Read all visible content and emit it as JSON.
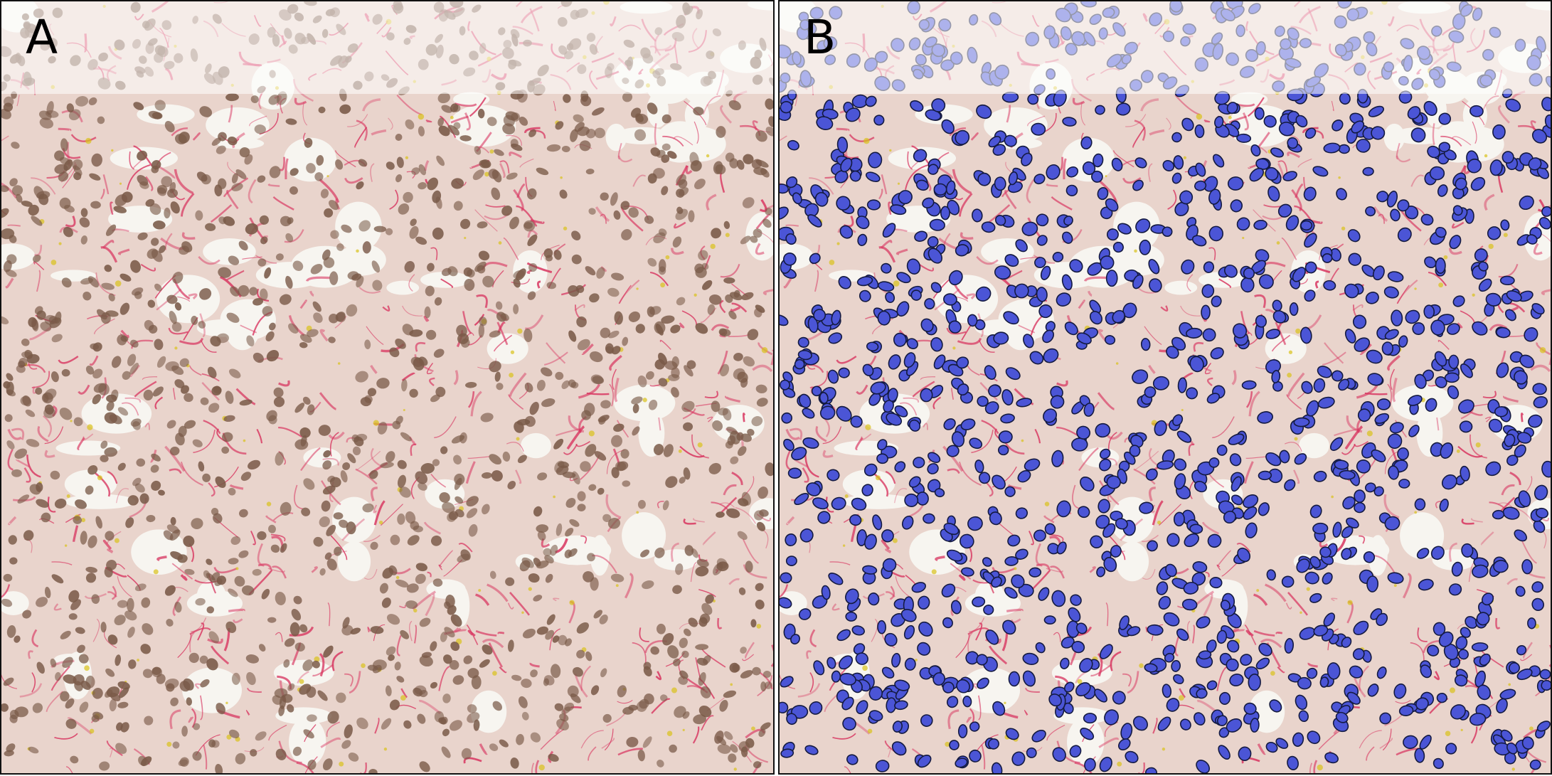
{
  "panels": [
    {
      "label": "A",
      "overlay": false
    },
    {
      "label": "B",
      "overlay": true
    }
  ],
  "colors": {
    "tissue_background": "#e9d4cc",
    "collagen_fiber": "#d8345f",
    "nucleus": "#7a5a48",
    "lumen": "#f7f5f0",
    "segmentation_fill": "#4b55d6",
    "segmentation_outline": "#141a40",
    "hemosiderin": "#d9c21a"
  }
}
